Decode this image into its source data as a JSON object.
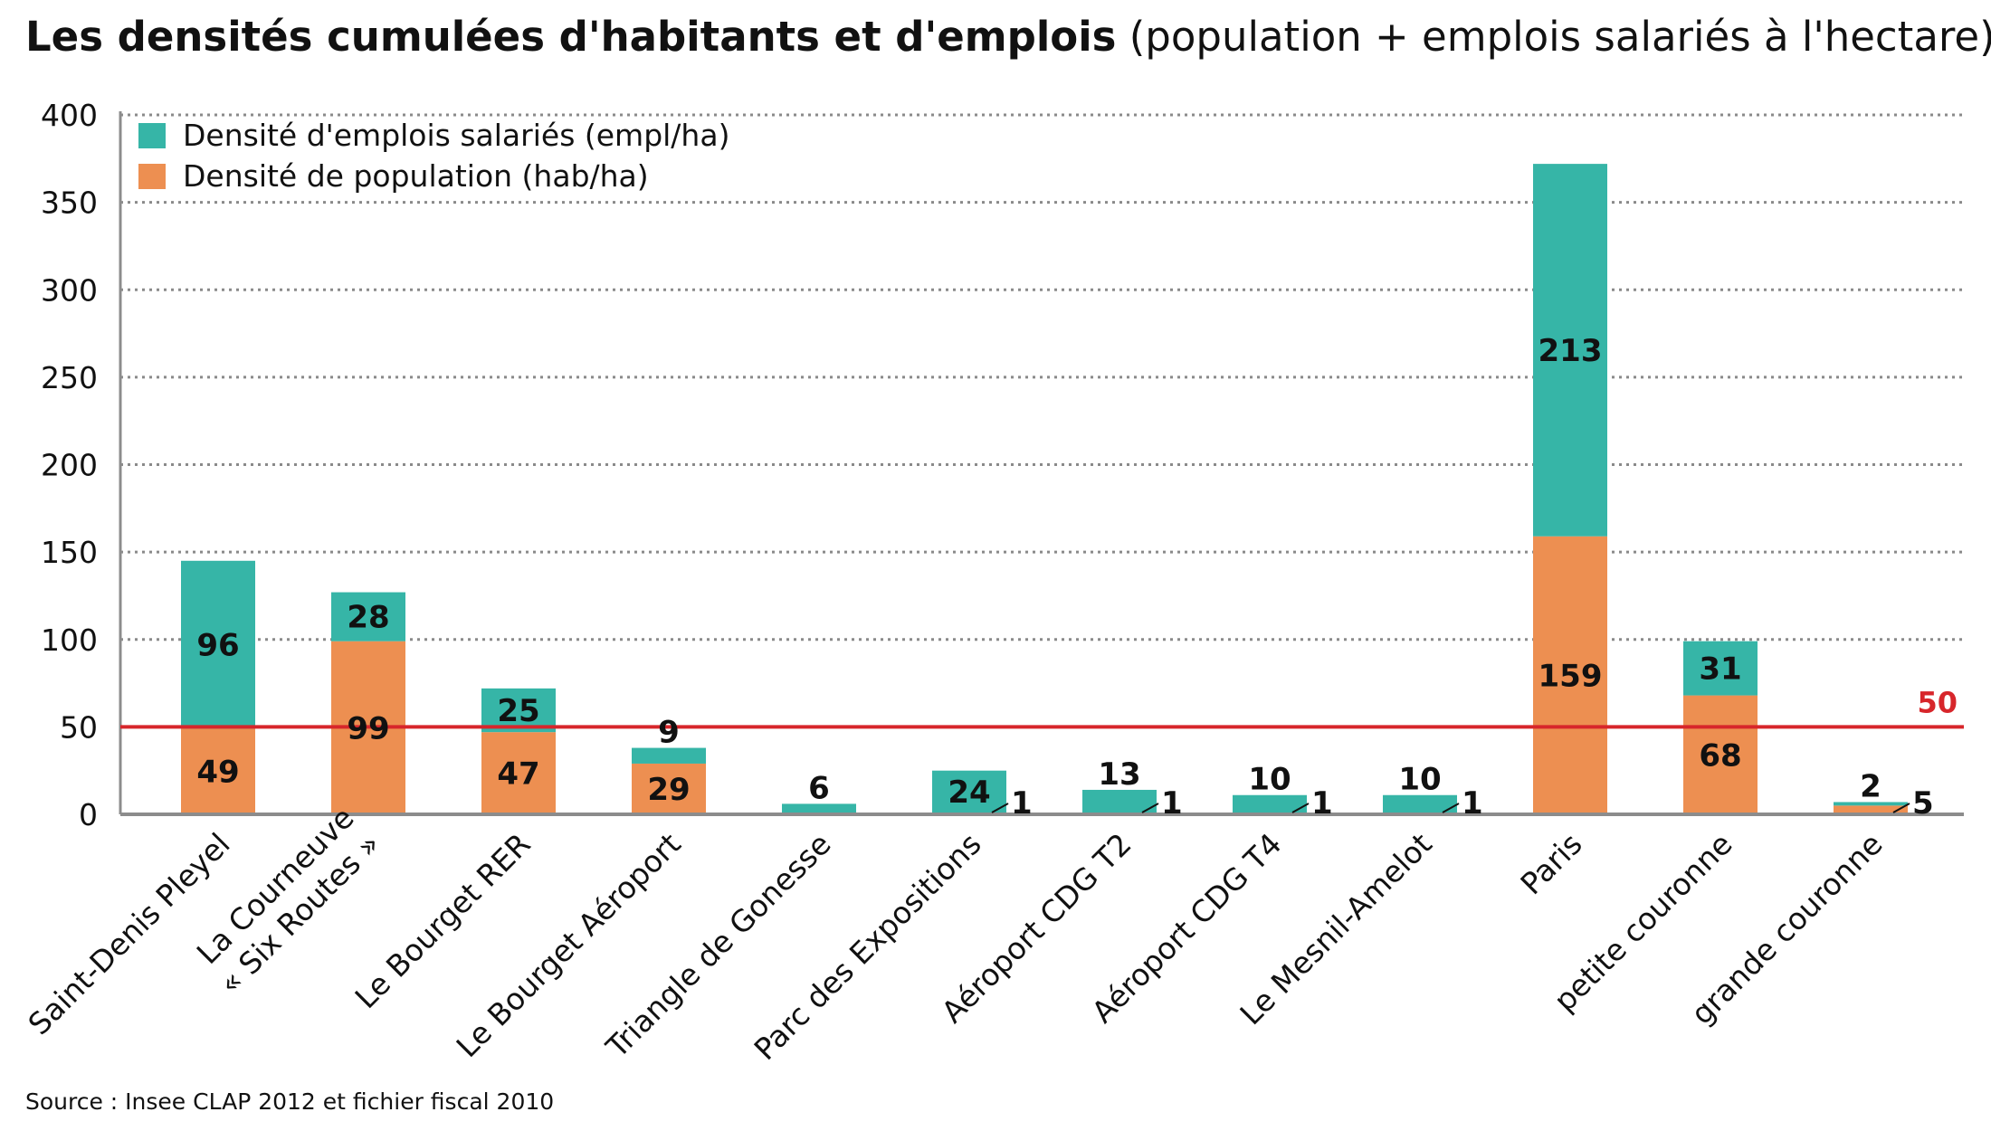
{
  "title": "Les densités cumulées d'habitants et d'emplois",
  "subtitle": "(population + emplois salariés à l'hectare)",
  "source": "Source : Insee CLAP 2012 et fichier fiscal 2010",
  "colors": {
    "emplois": "#36b5a7",
    "population": "#ed8f51",
    "reference": "#d7262b"
  },
  "chart_data": {
    "type": "bar",
    "stacked": true,
    "categories": [
      "Saint-Denis Pleyel",
      "La Courneuve\n« Six Routes »",
      "Le Bourget RER",
      "Le Bourget Aéroport",
      "Triangle de Gonesse",
      "Parc des Expositions",
      "Aéroport CDG T2",
      "Aéroport CDG T4",
      "Le Mesnil-Amelot",
      "Paris",
      "petite couronne",
      "grande couronne"
    ],
    "series": [
      {
        "name": "Densité de population (hab/ha)",
        "color": "#ed8f51",
        "values": [
          49,
          99,
          47,
          29,
          0,
          1,
          1,
          1,
          1,
          159,
          68,
          5
        ]
      },
      {
        "name": "Densité d'emplois salariés (empl/ha)",
        "color": "#36b5a7",
        "values": [
          96,
          28,
          25,
          9,
          6,
          24,
          13,
          10,
          10,
          213,
          31,
          2
        ]
      }
    ],
    "legend_order": [
      "Densité d'emplois salariés (empl/ha)",
      "Densité de population (hab/ha)"
    ],
    "legend_position": "top-left",
    "ylim": [
      0,
      400
    ],
    "yticks": [
      0,
      50,
      100,
      150,
      200,
      250,
      300,
      350,
      400
    ],
    "grid": "horizontal dotted",
    "reference_line": {
      "value": 50,
      "label": "50"
    }
  }
}
